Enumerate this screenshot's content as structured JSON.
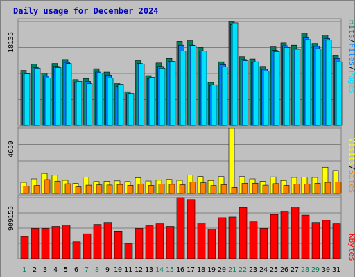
{
  "title": "Daily usage for December 2024",
  "colors": {
    "background": "#c0c0c0",
    "hits": "#008060",
    "files": "#0080ff",
    "pages": "#00e0ff",
    "visits": "#ffff00",
    "sites": "#ff8000",
    "kbytes": "#ff0000",
    "weekday_label": "#000000",
    "weekend_label": "#00805c"
  },
  "chart_data": [
    {
      "type": "bar",
      "panel": "hits-files-pages",
      "x": [
        1,
        2,
        3,
        4,
        5,
        6,
        7,
        8,
        9,
        10,
        11,
        12,
        13,
        14,
        15,
        16,
        17,
        18,
        19,
        20,
        21,
        22,
        23,
        24,
        25,
        26,
        27,
        28,
        29,
        30,
        31
      ],
      "y_max_label": "18135",
      "ylim": [
        0,
        18135
      ],
      "legend": [
        "Pages",
        "/",
        "Files",
        "/",
        "Hits"
      ],
      "series": [
        {
          "name": "Hits",
          "values": [
            9600,
            10700,
            9100,
            10800,
            11500,
            8000,
            8200,
            9900,
            9300,
            7300,
            5900,
            11300,
            8700,
            10900,
            11700,
            14700,
            14800,
            13600,
            7500,
            11100,
            18135,
            12000,
            11600,
            10300,
            13700,
            14400,
            14000,
            16100,
            14300,
            15800,
            12200
          ]
        },
        {
          "name": "Files",
          "values": [
            9100,
            10100,
            8600,
            10300,
            11000,
            7500,
            7700,
            9300,
            8800,
            6800,
            5500,
            10800,
            8200,
            10300,
            11200,
            14000,
            14000,
            13000,
            7000,
            10600,
            17600,
            11500,
            11000,
            9800,
            13100,
            13900,
            13400,
            15300,
            13800,
            15200,
            11700
          ]
        },
        {
          "name": "Pages",
          "values": [
            9000,
            10000,
            8300,
            10100,
            10800,
            7700,
            7300,
            9100,
            8300,
            7200,
            5600,
            10700,
            8400,
            10000,
            11200,
            13000,
            13900,
            13000,
            7100,
            10200,
            17900,
            11300,
            11100,
            9500,
            12900,
            13600,
            13300,
            15000,
            13400,
            14900,
            11100
          ]
        }
      ]
    },
    {
      "type": "bar",
      "panel": "visits-sites",
      "x": [
        1,
        2,
        3,
        4,
        5,
        6,
        7,
        8,
        9,
        10,
        11,
        12,
        13,
        14,
        15,
        16,
        17,
        18,
        19,
        20,
        21,
        22,
        23,
        24,
        25,
        26,
        27,
        28,
        29,
        30,
        31
      ],
      "y_max_label": "4659",
      "ylim": [
        0,
        4659
      ],
      "legend": [
        "Sites",
        "/",
        "Visits"
      ],
      "series": [
        {
          "name": "Visits",
          "values": [
            790,
            1040,
            1430,
            1300,
            940,
            720,
            1170,
            850,
            870,
            900,
            850,
            1120,
            890,
            950,
            1000,
            940,
            1320,
            1210,
            930,
            1200,
            4659,
            1200,
            1040,
            860,
            1180,
            930,
            1140,
            1170,
            1140,
            1870,
            1640
          ]
        },
        {
          "name": "Sites",
          "values": [
            530,
            560,
            990,
            880,
            690,
            470,
            590,
            610,
            600,
            640,
            580,
            680,
            570,
            660,
            650,
            620,
            820,
            760,
            560,
            620,
            430,
            720,
            730,
            590,
            700,
            570,
            670,
            680,
            730,
            790,
            820
          ]
        }
      ]
    },
    {
      "type": "bar",
      "panel": "kbytes",
      "x": [
        1,
        2,
        3,
        4,
        5,
        6,
        7,
        8,
        9,
        10,
        11,
        12,
        13,
        14,
        15,
        16,
        17,
        18,
        19,
        20,
        21,
        22,
        23,
        24,
        25,
        26,
        27,
        28,
        29,
        30,
        31
      ],
      "y_max_label": "909155",
      "ylim": [
        0,
        909155
      ],
      "legend": [
        "KBytes"
      ],
      "series": [
        {
          "name": "KBytes",
          "values": [
            330000,
            450000,
            450000,
            480000,
            500000,
            250000,
            370000,
            510000,
            540000,
            410000,
            220000,
            450000,
            490000,
            520000,
            480000,
            909155,
            880000,
            530000,
            440000,
            610000,
            620000,
            760000,
            550000,
            450000,
            660000,
            710000,
            770000,
            650000,
            540000,
            570000,
            520000
          ]
        }
      ]
    }
  ]
}
